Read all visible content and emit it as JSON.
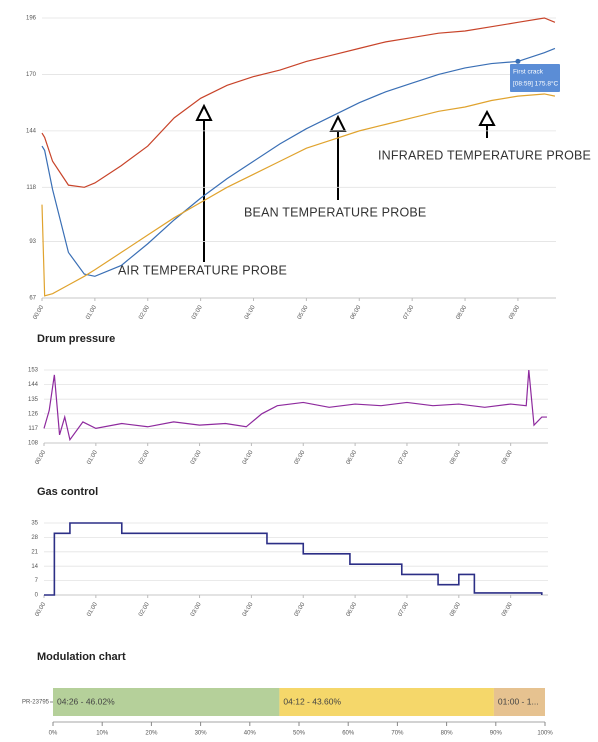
{
  "chart_data": [
    {
      "type": "line",
      "grid": true,
      "x": [
        0,
        0.05,
        0.2,
        0.5,
        0.8,
        1,
        1.5,
        2,
        2.5,
        3,
        3.5,
        4,
        4.5,
        5,
        5.5,
        6,
        6.5,
        7,
        7.5,
        8,
        8.5,
        9,
        9.5,
        9.7
      ],
      "series": [
        {
          "color": "#c8442a",
          "values": [
            143,
            141,
            130,
            119,
            118,
            120,
            128,
            137,
            150,
            159,
            165,
            169,
            172,
            176,
            179,
            182,
            185,
            187,
            189,
            190,
            192,
            194,
            196,
            194
          ]
        },
        {
          "color": "#3a6fb5",
          "values": [
            137,
            135,
            117,
            88,
            78,
            77,
            82,
            92,
            103,
            113,
            122,
            130,
            138,
            145,
            151,
            157,
            162,
            166,
            170,
            173,
            175,
            176,
            180,
            182
          ]
        },
        {
          "color": "#e0a32e",
          "values": [
            110,
            68,
            69,
            73,
            77,
            80,
            88,
            96,
            104,
            111,
            118,
            124,
            130,
            136,
            140,
            144,
            147,
            150,
            153,
            155,
            158,
            160,
            161,
            160
          ]
        }
      ],
      "xlim": [
        0,
        9.72
      ],
      "ylim": [
        67,
        196
      ],
      "yticks": [
        67,
        93,
        118,
        144,
        170,
        196
      ],
      "xticks": [
        {
          "value": 0,
          "label": "00:00"
        },
        {
          "value": 1,
          "label": "01:00"
        },
        {
          "value": 2,
          "label": "02:00"
        },
        {
          "value": 3,
          "label": "03:00"
        },
        {
          "value": 4,
          "label": "04:00"
        },
        {
          "value": 5,
          "label": "05:00"
        },
        {
          "value": 6,
          "label": "06:00"
        },
        {
          "value": 7,
          "label": "07:00"
        },
        {
          "value": 8,
          "label": "08:00"
        },
        {
          "value": 9,
          "label": "09:00"
        }
      ],
      "annotations": [
        "AIR TEMPERATURE PROBE",
        "BEAN TEMPERATURE PROBE",
        "INFRARED TEMPERATURE PROBE",
        "First crack",
        "[08:59] 175.8°C"
      ]
    },
    {
      "type": "line",
      "title": "Drum pressure",
      "grid": true,
      "x": [
        0,
        0.1,
        0.2,
        0.3,
        0.4,
        0.5,
        0.75,
        1,
        1.5,
        2,
        2.5,
        3,
        3.5,
        3.9,
        4.2,
        4.5,
        5,
        5.5,
        6,
        6.5,
        7,
        7.5,
        8,
        8.5,
        9,
        9.3,
        9.35,
        9.45,
        9.6,
        9.7
      ],
      "series": [
        {
          "color": "#8e2a9e",
          "values": [
            117,
            128,
            150,
            113,
            124,
            110,
            121,
            117,
            120,
            118,
            121,
            119,
            120,
            118,
            126,
            131,
            133,
            130,
            132,
            131,
            133,
            131,
            132,
            130,
            132,
            131,
            153,
            119,
            124,
            124
          ]
        }
      ],
      "xlim": [
        0,
        9.72
      ],
      "ylim": [
        108,
        153
      ],
      "yticks": [
        108,
        117,
        126,
        135,
        144,
        153
      ],
      "xticks": [
        {
          "value": 0,
          "label": "00:00"
        },
        {
          "value": 1,
          "label": "01:00"
        },
        {
          "value": 2,
          "label": "02:00"
        },
        {
          "value": 3,
          "label": "03:00"
        },
        {
          "value": 4,
          "label": "04:00"
        },
        {
          "value": 5,
          "label": "05:00"
        },
        {
          "value": 6,
          "label": "06:00"
        },
        {
          "value": 7,
          "label": "07:00"
        },
        {
          "value": 8,
          "label": "08:00"
        },
        {
          "value": 9,
          "label": "09:00"
        }
      ]
    },
    {
      "type": "line",
      "title": "Gas control",
      "grid": true,
      "step": true,
      "x": [
        0,
        0.2,
        0.5,
        1.5,
        4.3,
        5,
        5.9,
        6.9,
        7.6,
        8,
        8.3,
        9.6
      ],
      "series": [
        {
          "color": "#2c2f86",
          "values": [
            0,
            30,
            35,
            30,
            25,
            20,
            15,
            10,
            5,
            10,
            1,
            0
          ]
        }
      ],
      "xlim": [
        0,
        9.72
      ],
      "ylim": [
        0,
        35
      ],
      "yticks": [
        0,
        7,
        14,
        21,
        28,
        35
      ],
      "xticks": [
        {
          "value": 0,
          "label": "00:00"
        },
        {
          "value": 1,
          "label": "01:00"
        },
        {
          "value": 2,
          "label": "02:00"
        },
        {
          "value": 3,
          "label": "03:00"
        },
        {
          "value": 4,
          "label": "04:00"
        },
        {
          "value": 5,
          "label": "05:00"
        },
        {
          "value": 6,
          "label": "06:00"
        },
        {
          "value": 7,
          "label": "07:00"
        },
        {
          "value": 8,
          "label": "08:00"
        },
        {
          "value": 9,
          "label": "09:00"
        }
      ]
    },
    {
      "type": "stacked-bar",
      "title": "Modulation chart",
      "categories": [
        "PR-23795"
      ],
      "series": [
        {
          "color": "#b5d09a",
          "values": [
            46.02
          ],
          "value_labels": [
            "04:26 - 46.02%"
          ]
        },
        {
          "color": "#f5d76a",
          "values": [
            43.6
          ],
          "value_labels": [
            "04:12 - 43.60%"
          ]
        },
        {
          "color": "#e6c290",
          "values": [
            10.38
          ],
          "value_labels": [
            "01:00 - 1..."
          ]
        }
      ],
      "xlim": [
        0,
        100
      ],
      "xticks": [
        {
          "value": 0,
          "label": "0%"
        },
        {
          "value": 10,
          "label": "10%"
        },
        {
          "value": 20,
          "label": "20%"
        },
        {
          "value": 30,
          "label": "30%"
        },
        {
          "value": 40,
          "label": "40%"
        },
        {
          "value": 50,
          "label": "50%"
        },
        {
          "value": 60,
          "label": "60%"
        },
        {
          "value": 70,
          "label": "70%"
        },
        {
          "value": 80,
          "label": "80%"
        },
        {
          "value": 90,
          "label": "90%"
        },
        {
          "value": 100,
          "label": "100%"
        }
      ]
    }
  ]
}
